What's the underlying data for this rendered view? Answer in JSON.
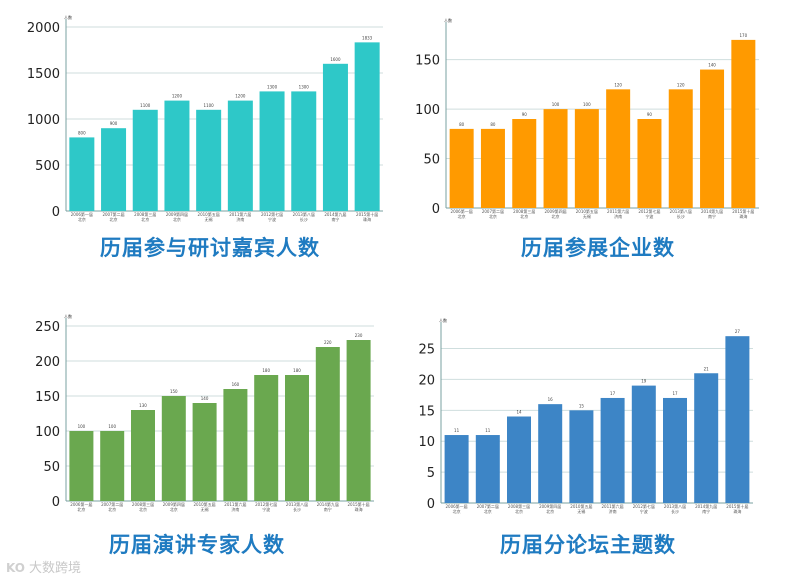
{
  "watermark": {
    "logo": "KO",
    "text": "大数跨境"
  },
  "chart_data": [
    {
      "type": "bar",
      "title": "历届参与研讨嘉宾人数",
      "ylabel": "人数",
      "ylim": [
        0,
        2000
      ],
      "yticks": [
        0,
        500,
        1000,
        1500,
        2000
      ],
      "color": "#2ec8c8",
      "categories": [
        [
          "2006第一届",
          "北京"
        ],
        [
          "2007第二届",
          "北京"
        ],
        [
          "2008第三届",
          "北京"
        ],
        [
          "2009第四届",
          "北京"
        ],
        [
          "2010第五届",
          "无锡"
        ],
        [
          "2011第六届",
          "济南"
        ],
        [
          "2012第七届",
          "宁波"
        ],
        [
          "2013第八届",
          "长沙"
        ],
        [
          "2014第九届",
          "南宁"
        ],
        [
          "2015第十届",
          "珠海"
        ]
      ],
      "values": [
        800,
        900,
        1100,
        1200,
        1100,
        1200,
        1300,
        1300,
        1600,
        1833
      ]
    },
    {
      "type": "bar",
      "title": "历届参展企业数",
      "ylabel": "人数",
      "ylim": [
        0,
        180
      ],
      "yticks": [
        0,
        50,
        100,
        150
      ],
      "color": "#ff9a00",
      "categories": [
        [
          "2006第一届",
          "北京"
        ],
        [
          "2007第二届",
          "北京"
        ],
        [
          "2008第三届",
          "北京"
        ],
        [
          "2009第四届",
          "北京"
        ],
        [
          "2010第五届",
          "无锡"
        ],
        [
          "2011第六届",
          "济南"
        ],
        [
          "2012第七届",
          "宁波"
        ],
        [
          "2013第八届",
          "长沙"
        ],
        [
          "2014第九届",
          "南宁"
        ],
        [
          "2015第十届",
          "珠海"
        ]
      ],
      "values": [
        80,
        80,
        90,
        100,
        100,
        120,
        90,
        120,
        140,
        170
      ]
    },
    {
      "type": "bar",
      "title": "历届演讲专家人数",
      "ylabel": "人数",
      "ylim": [
        0,
        250
      ],
      "yticks": [
        0,
        50,
        100,
        150,
        200,
        250
      ],
      "color": "#6aa84f",
      "categories": [
        [
          "2006第一届",
          "北京"
        ],
        [
          "2007第二届",
          "北京"
        ],
        [
          "2008第三届",
          "北京"
        ],
        [
          "2009第四届",
          "北京"
        ],
        [
          "2010第五届",
          "无锡"
        ],
        [
          "2011第六届",
          "济南"
        ],
        [
          "2012第七届",
          "宁波"
        ],
        [
          "2013第八届",
          "长沙"
        ],
        [
          "2014第九届",
          "南宁"
        ],
        [
          "2015第十届",
          "珠海"
        ]
      ],
      "values": [
        100,
        100,
        130,
        150,
        140,
        160,
        180,
        180,
        220,
        230
      ]
    },
    {
      "type": "bar",
      "title": "历届分论坛主题数",
      "ylabel": "人数",
      "ylim": [
        0,
        28
      ],
      "yticks": [
        0,
        5,
        10,
        15,
        20,
        25
      ],
      "color": "#3d85c6",
      "categories": [
        [
          "2006第一届",
          "北京"
        ],
        [
          "2007第二届",
          "北京"
        ],
        [
          "2008第三届",
          "北京"
        ],
        [
          "2009第四届",
          "北京"
        ],
        [
          "2010第五届",
          "无锡"
        ],
        [
          "2011第六届",
          "济南"
        ],
        [
          "2012第七届",
          "宁波"
        ],
        [
          "2013第八届",
          "长沙"
        ],
        [
          "2014第九届",
          "南宁"
        ],
        [
          "2015第十届",
          "珠海"
        ]
      ],
      "values": [
        11,
        11,
        14,
        16,
        15,
        17,
        19,
        17,
        21,
        27
      ]
    }
  ]
}
